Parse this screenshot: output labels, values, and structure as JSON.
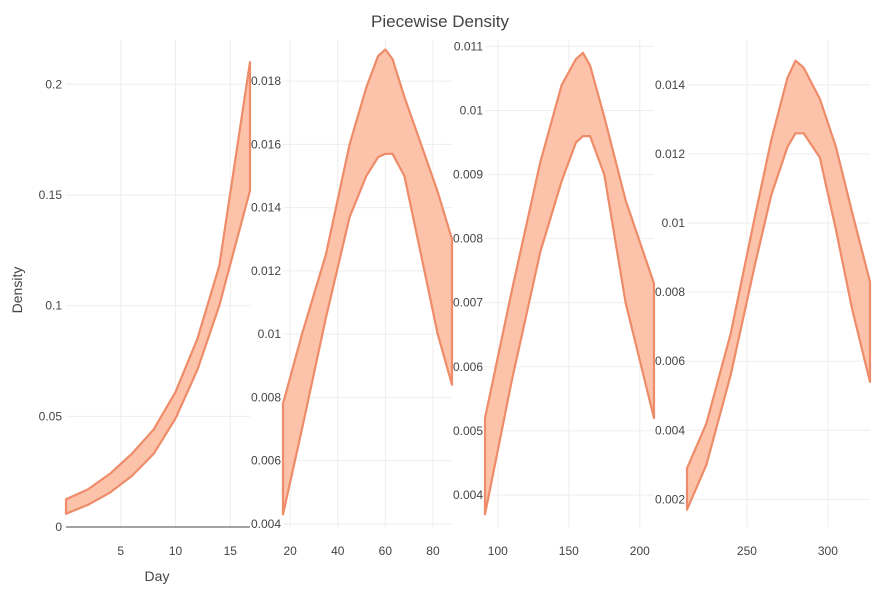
{
  "chart_data": {
    "type": "area",
    "title": "Piecewise Density",
    "xlabel": "Day",
    "ylabel": "Density",
    "grid": true,
    "legend": "none",
    "colors": {
      "band_fill": "#fcc3aa",
      "band_line": "#ee8c69",
      "grid": "#eeeeee",
      "text": "#444444"
    },
    "panels": [
      {
        "xlim": [
          0,
          16.8
        ],
        "ylim": [
          0,
          0.22
        ],
        "xticks": [
          {
            "v": 5,
            "label": "5"
          },
          {
            "v": 10,
            "label": "10"
          },
          {
            "v": 15,
            "label": "15"
          }
        ],
        "yticks": [
          {
            "v": 0,
            "label": "0"
          },
          {
            "v": 0.05,
            "label": "0.05"
          },
          {
            "v": 0.1,
            "label": "0.1"
          },
          {
            "v": 0.15,
            "label": "0.15"
          },
          {
            "v": 0.2,
            "label": "0.2"
          }
        ],
        "x": [
          0,
          2,
          4,
          6,
          8,
          10,
          12,
          14,
          16.8
        ],
        "upper": [
          0.0125,
          0.017,
          0.024,
          0.033,
          0.044,
          0.061,
          0.085,
          0.118,
          0.21
        ],
        "lower": [
          0.006,
          0.01,
          0.0155,
          0.023,
          0.033,
          0.049,
          0.071,
          0.1,
          0.152
        ]
      },
      {
        "xlim": [
          17,
          88
        ],
        "ylim": [
          0.0039,
          0.0193
        ],
        "xticks": [
          {
            "v": 20,
            "label": "20"
          },
          {
            "v": 40,
            "label": "40"
          },
          {
            "v": 60,
            "label": "60"
          },
          {
            "v": 80,
            "label": "80"
          }
        ],
        "yticks": [
          {
            "v": 0.004,
            "label": "0.004"
          },
          {
            "v": 0.006,
            "label": "0.006"
          },
          {
            "v": 0.008,
            "label": "0.008"
          },
          {
            "v": 0.01,
            "label": "0.01"
          },
          {
            "v": 0.012,
            "label": "0.012"
          },
          {
            "v": 0.014,
            "label": "0.014"
          },
          {
            "v": 0.016,
            "label": "0.016"
          },
          {
            "v": 0.018,
            "label": "0.018"
          }
        ],
        "x": [
          17,
          25,
          35,
          45,
          52,
          57,
          60,
          63,
          68,
          75,
          82,
          88
        ],
        "upper": [
          0.0078,
          0.01,
          0.0125,
          0.016,
          0.0178,
          0.0188,
          0.019,
          0.0187,
          0.0175,
          0.016,
          0.0145,
          0.013
        ],
        "lower": [
          0.0043,
          0.007,
          0.0105,
          0.0137,
          0.015,
          0.0156,
          0.0157,
          0.0157,
          0.015,
          0.0125,
          0.01,
          0.0084
        ]
      },
      {
        "xlim": [
          91,
          210
        ],
        "ylim": [
          0.0035,
          0.0111
        ],
        "xticks": [
          {
            "v": 100,
            "label": "100"
          },
          {
            "v": 150,
            "label": "150"
          },
          {
            "v": 200,
            "label": "200"
          }
        ],
        "yticks": [
          {
            "v": 0.004,
            "label": "0.004"
          },
          {
            "v": 0.005,
            "label": "0.005"
          },
          {
            "v": 0.006,
            "label": "0.006"
          },
          {
            "v": 0.007,
            "label": "0.007"
          },
          {
            "v": 0.008,
            "label": "0.008"
          },
          {
            "v": 0.009,
            "label": "0.009"
          },
          {
            "v": 0.01,
            "label": "0.01"
          },
          {
            "v": 0.011,
            "label": "0.011"
          }
        ],
        "x": [
          91,
          110,
          130,
          145,
          155,
          160,
          165,
          175,
          190,
          210
        ],
        "upper": [
          0.0052,
          0.0072,
          0.0092,
          0.0104,
          0.0108,
          0.0109,
          0.0107,
          0.0099,
          0.0086,
          0.0073
        ],
        "lower": [
          0.0037,
          0.0058,
          0.0078,
          0.0089,
          0.0095,
          0.0096,
          0.0096,
          0.009,
          0.007,
          0.0052
        ]
      },
      {
        "xlim": [
          213,
          326
        ],
        "ylim": [
          0.0012,
          0.0153
        ],
        "xticks": [
          {
            "v": 250,
            "label": "250"
          },
          {
            "v": 300,
            "label": "300"
          }
        ],
        "yticks": [
          {
            "v": 0.002,
            "label": "0.002"
          },
          {
            "v": 0.004,
            "label": "0.004"
          },
          {
            "v": 0.006,
            "label": "0.006"
          },
          {
            "v": 0.008,
            "label": "0.008"
          },
          {
            "v": 0.01,
            "label": "0.01"
          },
          {
            "v": 0.012,
            "label": "0.012"
          },
          {
            "v": 0.014,
            "label": "0.014"
          }
        ],
        "x": [
          213,
          225,
          240,
          255,
          265,
          275,
          280,
          285,
          295,
          305,
          315,
          326
        ],
        "upper": [
          0.0029,
          0.0042,
          0.0068,
          0.0102,
          0.0124,
          0.0142,
          0.0147,
          0.0145,
          0.0136,
          0.0122,
          0.0103,
          0.0083
        ],
        "lower": [
          0.0017,
          0.003,
          0.0056,
          0.0088,
          0.0108,
          0.0122,
          0.0126,
          0.0126,
          0.0119,
          0.0098,
          0.0075,
          0.0054
        ]
      }
    ]
  }
}
